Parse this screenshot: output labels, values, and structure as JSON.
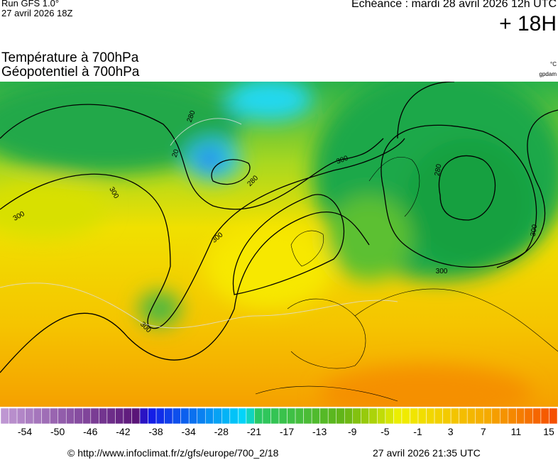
{
  "header": {
    "run": "Run GFS 1.0°",
    "run_date": "27 avril 2026 18Z",
    "echeance": "Echéance : mardi 28 avril 2026 12h UTC",
    "lead": "+ 18H",
    "title1": "Température à 700hPa",
    "title2": "Géopotentiel à 700hPa",
    "unit1": "°C",
    "unit2": "gpdam"
  },
  "map": {
    "contour_labels": [
      "280",
      "20",
      "280",
      "300",
      "300",
      "300",
      "300",
      "280",
      "300",
      "300",
      "300"
    ]
  },
  "colorbar": {
    "labels": [
      -54,
      -50,
      -46,
      -42,
      -38,
      -34,
      -28,
      -21,
      -17,
      -13,
      -9,
      -5,
      -1,
      3,
      7,
      11,
      15
    ]
  },
  "footer": {
    "source": "© http://www.infoclimat.fr/z/gfs/europe/700_2/18",
    "generated": "27 avril 2026 21:35 UTC"
  }
}
